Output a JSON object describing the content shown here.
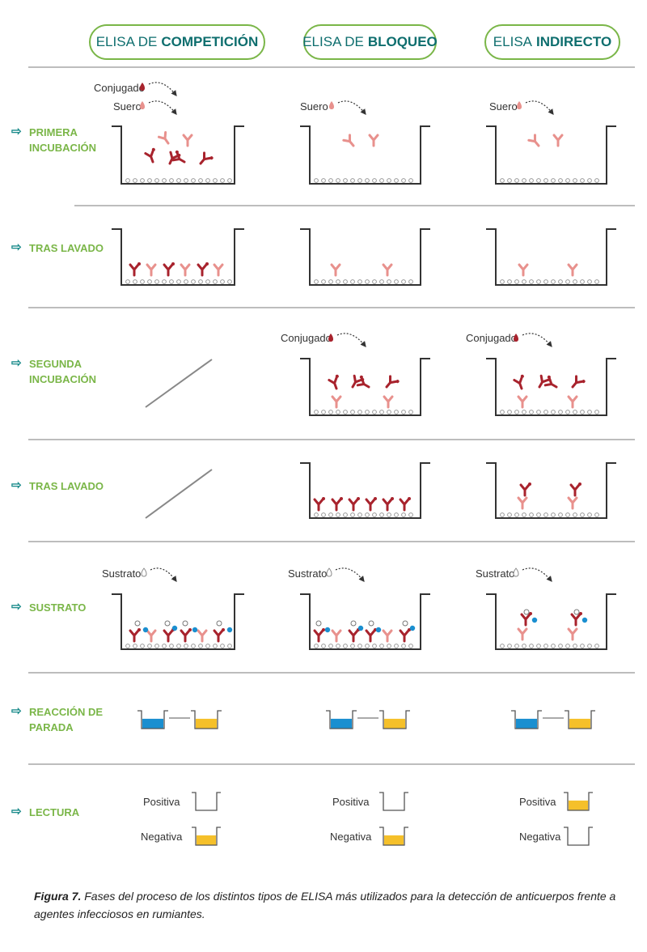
{
  "headers": [
    {
      "prefix": "ELISA DE",
      "bold": "COMPETICIÓN"
    },
    {
      "prefix": "ELISA DE",
      "bold": "BLOQUEO"
    },
    {
      "prefix": "ELISA",
      "bold": "INDIRECTO"
    }
  ],
  "steps": [
    {
      "line1": "PRIMERA",
      "line2": "INCUBACIÓN"
    },
    {
      "line1": "TRAS LAVADO",
      "line2": ""
    },
    {
      "line1": "SEGUNDA",
      "line2": "INCUBACIÓN"
    },
    {
      "line1": "TRAS LAVADO",
      "line2": ""
    },
    {
      "line1": "SUSTRATO",
      "line2": ""
    },
    {
      "line1": "REACCIÓN DE",
      "line2": "PARADA"
    },
    {
      "line1": "LECTURA",
      "line2": ""
    }
  ],
  "reagents": {
    "conjugado": "Conjugado",
    "suero": "Suero",
    "sustrato": "Sustrato"
  },
  "results": {
    "positiva": "Positiva",
    "negativa": "Negativa"
  },
  "reading": {
    "competicion": {
      "positiva": "clear",
      "negativa": "yellow"
    },
    "bloqueo": {
      "positiva": "clear",
      "negativa": "yellow"
    },
    "indirecto": {
      "positiva": "yellow",
      "negativa": "clear"
    }
  },
  "caption": {
    "label": "Figura 7.",
    "text": "Fases del proceso de los distintos tipos de ELISA más utilizados para la detección de anticuerpos frente a agentes infecciosos en rumiantes."
  },
  "colors": {
    "header_border": "#7ab648",
    "header_text": "#0e6e6e",
    "step_text": "#7ab648",
    "arrow": "#1a8b8b",
    "conjugate_antibody": "#a8232d",
    "serum_antibody": "#e8918d",
    "blue": "#1a8fd0",
    "yellow": "#f5c02a"
  }
}
